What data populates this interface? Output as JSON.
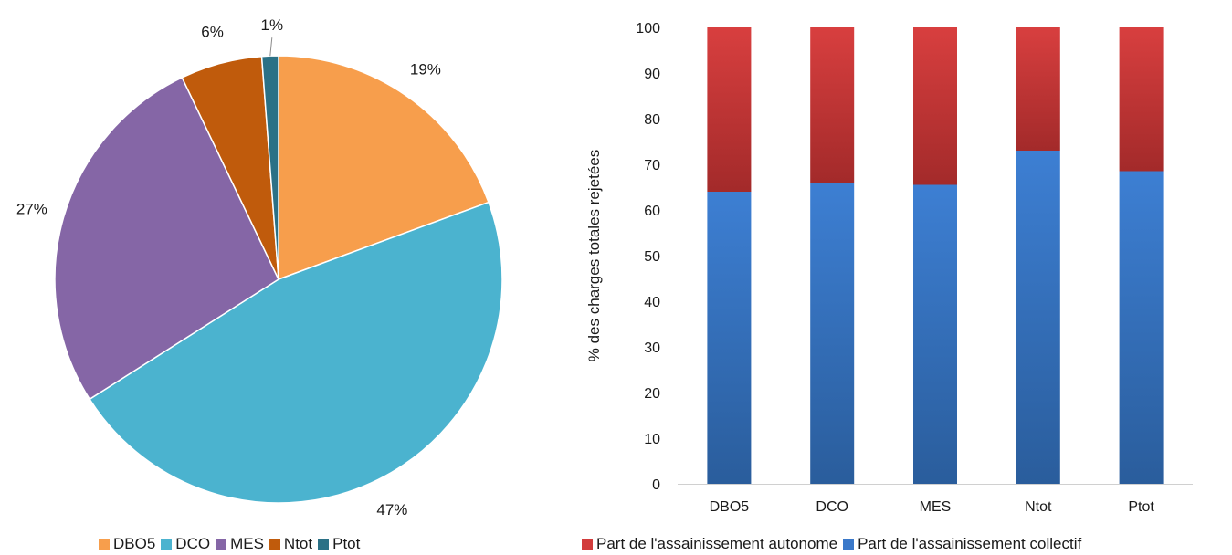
{
  "chart_data": [
    {
      "type": "pie",
      "categories": [
        "DBO5",
        "DCO",
        "MES",
        "Ntot",
        "Ptot"
      ],
      "values": [
        19.4,
        46.6,
        26.9,
        5.9,
        1.2
      ],
      "data_labels": [
        "19%",
        "47%",
        "27%",
        "6%",
        "1%"
      ],
      "colors": [
        "#f79e4c",
        "#4bb3cf",
        "#8566a6",
        "#c05b0c",
        "#2b7186"
      ],
      "legend": "bottom",
      "title": ""
    },
    {
      "type": "bar",
      "stacked": true,
      "categories": [
        "DBO5",
        "DCO",
        "MES",
        "Ntot",
        "Ptot"
      ],
      "series": [
        {
          "name": "Part de l'assainissement collectif",
          "values": [
            64,
            66,
            65.5,
            73,
            68.5
          ],
          "color": "#3a78c9"
        },
        {
          "name": "Part de l'assainissement autonome",
          "values": [
            36,
            34,
            34.5,
            27,
            31.5
          ],
          "color": "#d23c3c"
        }
      ],
      "legend_order": [
        "Part de l'assainissement autonome",
        "Part de l'assainissement collectif"
      ],
      "ylabel": "% des charges totales rejetées",
      "xlabel": "",
      "ylim": [
        0,
        100
      ],
      "yticks": [
        0,
        10,
        20,
        30,
        40,
        50,
        60,
        70,
        80,
        90,
        100
      ],
      "grid": false,
      "legend": "bottom",
      "title": ""
    }
  ]
}
